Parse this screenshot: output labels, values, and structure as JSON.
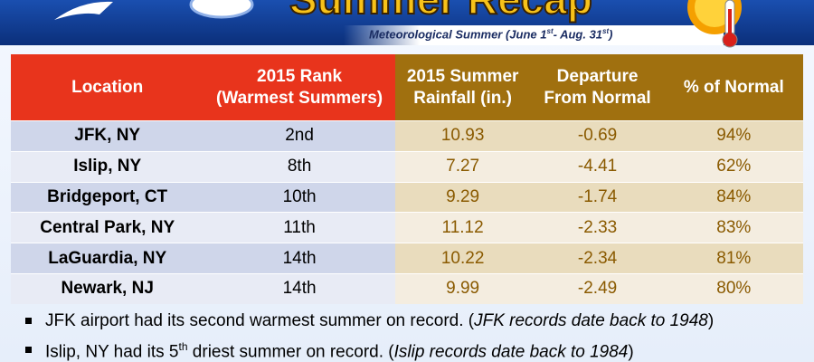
{
  "header": {
    "title": "Summer Recap",
    "subtitle": [
      "Meteorological Summer (June 1",
      "st",
      "- Aug. 31",
      "st",
      ")"
    ]
  },
  "table": {
    "columns": [
      [
        "Location"
      ],
      [
        "2015 Rank",
        "(Warmest Summers)"
      ],
      [
        "2015 Summer",
        "Rainfall (in.)"
      ],
      [
        "Departure",
        "From Normal"
      ],
      [
        "% of Normal"
      ]
    ],
    "rows": [
      [
        "JFK, NY",
        "2nd",
        "10.93",
        "-0.69",
        "94%"
      ],
      [
        "Islip, NY",
        "8th",
        "7.27",
        "-4.41",
        "62%"
      ],
      [
        "Bridgeport, CT",
        "10th",
        "9.29",
        "-1.74",
        "84%"
      ],
      [
        "Central Park, NY",
        "11th",
        "11.12",
        "-2.33",
        "83%"
      ],
      [
        "LaGuardia, NY",
        "14th",
        "10.22",
        "-2.34",
        "81%"
      ],
      [
        "Newark, NJ",
        "14th",
        "9.99",
        "-2.49",
        "80%"
      ]
    ]
  },
  "bullets": [
    [
      "JFK airport had its second warmest summer on record. (",
      "JFK records date back to 1948",
      ")"
    ],
    [
      "Islip, NY had its 5",
      "th",
      " driest summer on record. (",
      "Islip records date back to 1984",
      ")"
    ]
  ]
}
